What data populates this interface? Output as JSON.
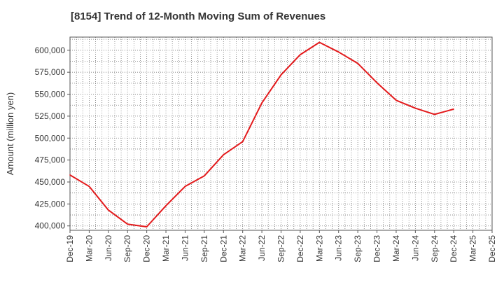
{
  "chart_data": {
    "type": "line",
    "title": "[8154]  Trend of 12-Month Moving Sum of Revenues",
    "xlabel": "",
    "ylabel": "Amount (million yen)",
    "ylim": [
      395000,
      615000
    ],
    "yticks": [
      400000,
      425000,
      450000,
      475000,
      500000,
      525000,
      550000,
      575000,
      600000
    ],
    "ytick_labels": [
      "400,000",
      "425,000",
      "450,000",
      "475,000",
      "500,000",
      "525,000",
      "550,000",
      "575,000",
      "600,000"
    ],
    "xtick_labels": [
      "Dec-19",
      "Mar-20",
      "Jun-20",
      "Sep-20",
      "Dec-20",
      "Mar-21",
      "Jun-21",
      "Sep-21",
      "Dec-21",
      "Mar-22",
      "Jun-22",
      "Sep-22",
      "Dec-22",
      "Mar-23",
      "Jun-23",
      "Sep-23",
      "Dec-23",
      "Mar-24",
      "Jun-24",
      "Sep-24",
      "Dec-24",
      "Mar-25",
      "Dec-25"
    ],
    "grid": true,
    "color": "#e31a1c",
    "series": [
      {
        "x": [
          "Dec-19",
          "Mar-20",
          "Jun-20",
          "Sep-20",
          "Dec-20",
          "Mar-21",
          "Jun-21",
          "Sep-21",
          "Dec-21",
          "Mar-22",
          "Jun-22",
          "Sep-22",
          "Dec-22",
          "Mar-23",
          "Jun-23",
          "Sep-23",
          "Dec-23",
          "Mar-24",
          "Jun-24",
          "Sep-24",
          "Dec-24"
        ],
        "values": [
          458000,
          445000,
          418000,
          402000,
          399000,
          423000,
          445000,
          457000,
          481000,
          496000,
          540000,
          572000,
          595000,
          609000,
          598000,
          585000,
          563000,
          543000,
          534000,
          527000,
          533000
        ]
      }
    ]
  }
}
